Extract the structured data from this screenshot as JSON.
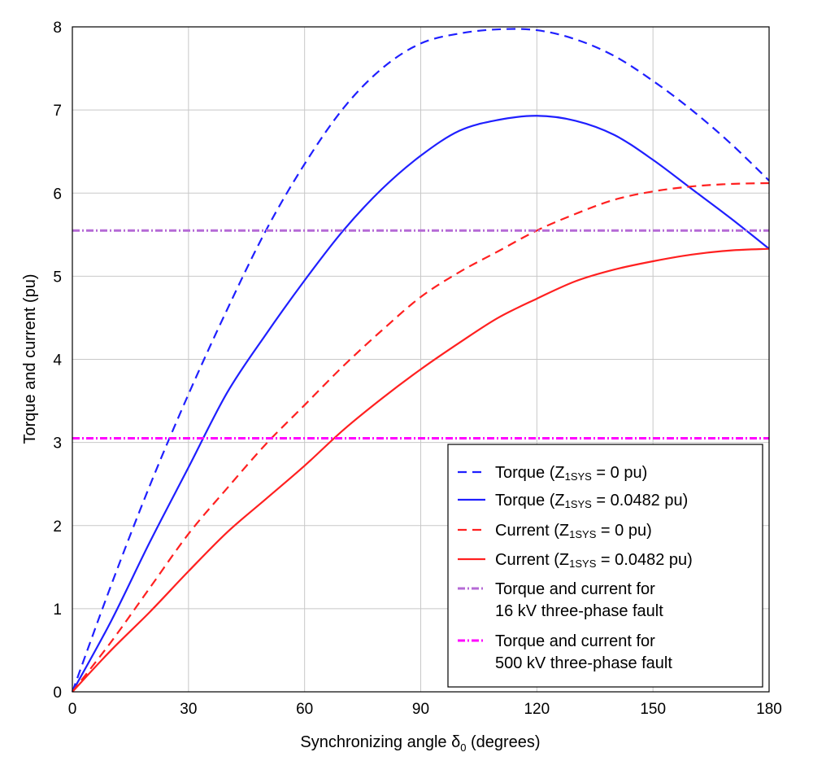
{
  "chart_data": {
    "type": "line",
    "xlabel": "Synchronizing angle δ",
    "xlabel_sub": "0",
    "xlabel_suffix": " (degrees)",
    "ylabel": "Torque and current (pu)",
    "xlim": [
      0,
      180
    ],
    "ylim": [
      0,
      8
    ],
    "xticks": [
      0,
      30,
      60,
      90,
      120,
      150,
      180
    ],
    "yticks": [
      0,
      1,
      2,
      3,
      4,
      5,
      6,
      7,
      8
    ],
    "grid": true,
    "legend_position": "bottom-right",
    "x": [
      0,
      10,
      20,
      30,
      40,
      50,
      60,
      70,
      80,
      90,
      100,
      110,
      120,
      130,
      140,
      150,
      160,
      170,
      180
    ],
    "series": [
      {
        "label_parts": [
          "Torque (Z",
          "1SYS",
          " = 0 pu)"
        ],
        "color": "#1f1fff",
        "dash": "dashed",
        "values": [
          0,
          1.28,
          2.48,
          3.58,
          4.6,
          5.55,
          6.35,
          7.02,
          7.5,
          7.8,
          7.92,
          7.97,
          7.96,
          7.85,
          7.65,
          7.35,
          7.0,
          6.6,
          6.15
        ]
      },
      {
        "label_parts": [
          "Torque (Z",
          "1SYS",
          " = 0.0482 pu)"
        ],
        "color": "#1f1fff",
        "dash": "solid",
        "values": [
          0,
          0.85,
          1.8,
          2.7,
          3.6,
          4.3,
          4.95,
          5.55,
          6.05,
          6.45,
          6.75,
          6.88,
          6.93,
          6.87,
          6.7,
          6.4,
          6.05,
          5.7,
          5.33
        ]
      },
      {
        "label_parts": [
          "Current (Z",
          "1SYS",
          " = 0 pu)"
        ],
        "color": "#ff2020",
        "dash": "dashed",
        "values": [
          0,
          0.6,
          1.25,
          1.9,
          2.45,
          2.98,
          3.45,
          3.92,
          4.35,
          4.75,
          5.05,
          5.3,
          5.55,
          5.75,
          5.92,
          6.02,
          6.08,
          6.11,
          6.12
        ]
      },
      {
        "label_parts": [
          "Current (Z",
          "1SYS",
          " = 0.0482 pu)"
        ],
        "color": "#ff2020",
        "dash": "solid",
        "values": [
          0,
          0.5,
          0.96,
          1.45,
          1.92,
          2.32,
          2.72,
          3.15,
          3.53,
          3.88,
          4.2,
          4.5,
          4.73,
          4.94,
          5.08,
          5.18,
          5.26,
          5.31,
          5.33
        ]
      },
      {
        "label_parts": [
          "Torque and current for",
          "16 kV three-phase fault"
        ],
        "color": "#b56ad6",
        "dash": "dashdot",
        "constant": 5.55
      },
      {
        "label_parts": [
          "Torque and current for",
          "500 kV three-phase fault"
        ],
        "color": "#ff00ff",
        "dash": "dashdot",
        "constant": 3.05
      }
    ]
  }
}
